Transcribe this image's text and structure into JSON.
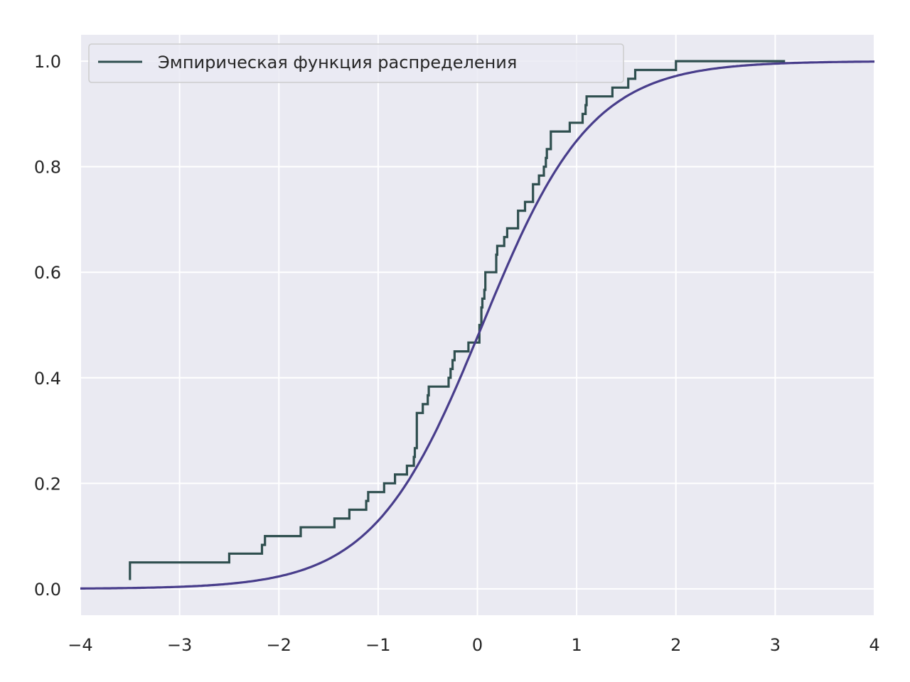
{
  "chart_data": {
    "type": "line",
    "title": "",
    "xlabel": "",
    "ylabel": "",
    "xlim": [
      -4,
      4
    ],
    "ylim": [
      -0.05,
      1.05
    ],
    "x_ticks": [
      -4,
      -3,
      -2,
      -1,
      0,
      1,
      2,
      3,
      4
    ],
    "x_tick_labels": [
      "−4",
      "−3",
      "−2",
      "−1",
      "0",
      "1",
      "2",
      "3",
      "4"
    ],
    "y_ticks": [
      0.0,
      0.2,
      0.4,
      0.6,
      0.8,
      1.0
    ],
    "y_tick_labels": [
      "0.0",
      "0.2",
      "0.4",
      "0.6",
      "0.8",
      "1.0"
    ],
    "grid": true,
    "legend_position": "top-left",
    "background_color": "#eaeaf2",
    "grid_color": "#ffffff",
    "series": [
      {
        "name": "Эмпирическая функция распределения",
        "kind": "step",
        "color": "#2f4f4f",
        "points": [
          [
            -3.5,
            0.0167
          ],
          [
            -3.5,
            0.0333
          ],
          [
            -2.5,
            0.05
          ],
          [
            -2.17,
            0.0667
          ],
          [
            -2.14,
            0.0833
          ],
          [
            -1.78,
            0.1
          ],
          [
            -1.44,
            0.1167
          ],
          [
            -1.29,
            0.1333
          ],
          [
            -1.12,
            0.15
          ],
          [
            -1.1,
            0.1667
          ],
          [
            -0.94,
            0.1833
          ],
          [
            -0.83,
            0.2
          ],
          [
            -0.71,
            0.2167
          ],
          [
            -0.64,
            0.2333
          ],
          [
            -0.63,
            0.25
          ],
          [
            -0.61,
            0.2667
          ],
          [
            -0.55,
            0.3333
          ],
          [
            -0.5,
            0.35
          ],
          [
            -0.49,
            0.3667
          ],
          [
            -0.29,
            0.3833
          ],
          [
            -0.27,
            0.4
          ],
          [
            -0.25,
            0.4167
          ],
          [
            -0.23,
            0.4333
          ],
          [
            -0.09,
            0.45
          ],
          [
            0.02,
            0.4667
          ],
          [
            0.04,
            0.5
          ],
          [
            0.05,
            0.5333
          ],
          [
            0.07,
            0.55
          ],
          [
            0.08,
            0.5667
          ],
          [
            0.19,
            0.6
          ],
          [
            0.2,
            0.6333
          ],
          [
            0.27,
            0.65
          ],
          [
            0.3,
            0.6667
          ],
          [
            0.41,
            0.6833
          ],
          [
            0.48,
            0.7167
          ],
          [
            0.56,
            0.7333
          ],
          [
            0.62,
            0.7667
          ],
          [
            0.67,
            0.7833
          ],
          [
            0.69,
            0.8
          ],
          [
            0.7,
            0.8167
          ],
          [
            0.74,
            0.8333
          ],
          [
            0.93,
            0.8667
          ],
          [
            1.06,
            0.8833
          ],
          [
            1.09,
            0.9
          ],
          [
            1.1,
            0.9167
          ],
          [
            1.36,
            0.9333
          ],
          [
            1.52,
            0.95
          ],
          [
            1.59,
            0.9667
          ],
          [
            2.0,
            0.9833
          ],
          [
            2.33,
            1.0
          ],
          [
            3.1,
            1.0
          ]
        ]
      },
      {
        "name": "",
        "kind": "line",
        "color": "#483d8b",
        "function": "logistic",
        "location": 0.05,
        "scale": 0.55
      }
    ]
  }
}
